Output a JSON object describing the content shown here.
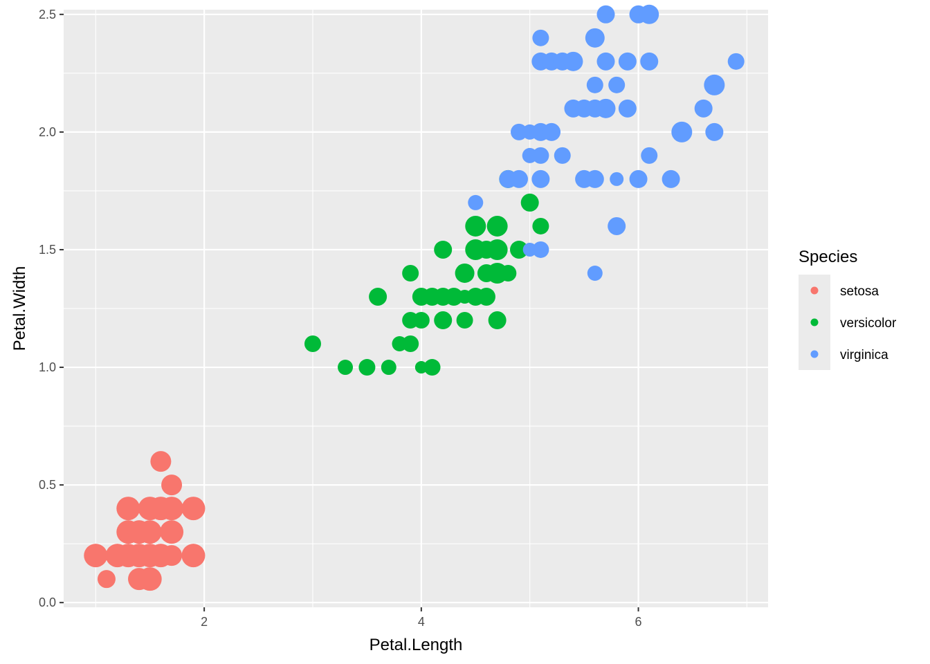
{
  "chart_data": {
    "type": "scatter",
    "xlabel": "Petal.Length",
    "ylabel": "Petal.Width",
    "xlim": [
      0.705,
      7.195
    ],
    "ylim": [
      -0.02,
      2.52
    ],
    "x_ticks": [
      2,
      4,
      6
    ],
    "y_ticks": [
      0.0,
      0.5,
      1.0,
      1.5,
      2.0,
      2.5
    ],
    "x_tick_labels": [
      "2",
      "4",
      "6"
    ],
    "y_tick_labels": [
      "0.0",
      "0.5",
      "1.0",
      "1.5",
      "2.0",
      "2.5"
    ],
    "grid": true,
    "legend": {
      "title": "Species",
      "position": "right",
      "entries": [
        "setosa",
        "versicolor",
        "virginica"
      ]
    },
    "colors": {
      "setosa": "#F8766D",
      "versicolor": "#00BA38",
      "virginica": "#619CFF",
      "panel_background": "#EBEBEB",
      "grid": "#FFFFFF"
    },
    "size_variable": "unlabeled",
    "series": [
      {
        "name": "setosa",
        "points": [
          [
            1.0,
            0.2,
            1
          ],
          [
            1.1,
            0.1,
            0.6
          ],
          [
            1.2,
            0.2,
            1
          ],
          [
            1.3,
            0.2,
            1
          ],
          [
            1.3,
            0.3,
            1
          ],
          [
            1.3,
            0.4,
            1
          ],
          [
            1.4,
            0.1,
            0.9
          ],
          [
            1.4,
            0.2,
            1
          ],
          [
            1.4,
            0.3,
            1
          ],
          [
            1.5,
            0.1,
            1
          ],
          [
            1.5,
            0.2,
            1
          ],
          [
            1.5,
            0.3,
            1
          ],
          [
            1.5,
            0.4,
            1
          ],
          [
            1.6,
            0.2,
            1
          ],
          [
            1.6,
            0.4,
            1
          ],
          [
            1.6,
            0.6,
            0.8
          ],
          [
            1.7,
            0.2,
            0.8
          ],
          [
            1.7,
            0.3,
            1
          ],
          [
            1.7,
            0.4,
            1
          ],
          [
            1.7,
            0.5,
            0.8
          ],
          [
            1.9,
            0.2,
            1
          ],
          [
            1.9,
            0.4,
            1
          ]
        ]
      },
      {
        "name": "versicolor",
        "points": [
          [
            3.0,
            1.1,
            0.5
          ],
          [
            3.3,
            1.0,
            0.4
          ],
          [
            3.5,
            1.0,
            0.5
          ],
          [
            3.6,
            1.3,
            0.6
          ],
          [
            3.7,
            1.0,
            0.4
          ],
          [
            3.8,
            1.1,
            0.4
          ],
          [
            3.9,
            1.1,
            0.5
          ],
          [
            3.9,
            1.2,
            0.5
          ],
          [
            3.9,
            1.4,
            0.5
          ],
          [
            4.0,
            1.0,
            0.2
          ],
          [
            4.0,
            1.2,
            0.5
          ],
          [
            4.0,
            1.3,
            0.6
          ],
          [
            4.1,
            1.0,
            0.5
          ],
          [
            4.1,
            1.3,
            0.6
          ],
          [
            4.2,
            1.2,
            0.6
          ],
          [
            4.2,
            1.3,
            0.6
          ],
          [
            4.2,
            1.5,
            0.6
          ],
          [
            4.3,
            1.3,
            0.6
          ],
          [
            4.4,
            1.2,
            0.5
          ],
          [
            4.4,
            1.3,
            0.3
          ],
          [
            4.4,
            1.4,
            0.7
          ],
          [
            4.5,
            1.3,
            0.6
          ],
          [
            4.5,
            1.5,
            0.8
          ],
          [
            4.5,
            1.6,
            0.8
          ],
          [
            4.6,
            1.3,
            0.6
          ],
          [
            4.6,
            1.4,
            0.6
          ],
          [
            4.6,
            1.5,
            0.6
          ],
          [
            4.7,
            1.2,
            0.6
          ],
          [
            4.7,
            1.4,
            0.8
          ],
          [
            4.7,
            1.5,
            0.8
          ],
          [
            4.7,
            1.6,
            0.8
          ],
          [
            4.8,
            1.4,
            0.5
          ],
          [
            4.8,
            1.8,
            0.6
          ],
          [
            4.9,
            1.5,
            0.6
          ],
          [
            5.0,
            1.7,
            0.6
          ],
          [
            5.1,
            1.6,
            0.5
          ]
        ]
      },
      {
        "name": "virginica",
        "points": [
          [
            4.5,
            1.7,
            0.4
          ],
          [
            4.8,
            1.8,
            0.6
          ],
          [
            4.9,
            1.8,
            0.6
          ],
          [
            4.9,
            2.0,
            0.5
          ],
          [
            5.0,
            1.5,
            0.3
          ],
          [
            5.0,
            1.9,
            0.4
          ],
          [
            5.0,
            2.0,
            0.4
          ],
          [
            5.1,
            1.5,
            0.5
          ],
          [
            5.1,
            1.8,
            0.6
          ],
          [
            5.1,
            1.9,
            0.5
          ],
          [
            5.1,
            2.0,
            0.6
          ],
          [
            5.1,
            2.3,
            0.6
          ],
          [
            5.1,
            2.4,
            0.5
          ],
          [
            5.2,
            2.0,
            0.6
          ],
          [
            5.2,
            2.3,
            0.6
          ],
          [
            5.3,
            1.9,
            0.5
          ],
          [
            5.3,
            2.3,
            0.6
          ],
          [
            5.4,
            2.1,
            0.6
          ],
          [
            5.4,
            2.3,
            0.7
          ],
          [
            5.5,
            1.8,
            0.6
          ],
          [
            5.5,
            2.1,
            0.6
          ],
          [
            5.6,
            1.4,
            0.4
          ],
          [
            5.6,
            1.8,
            0.6
          ],
          [
            5.6,
            2.1,
            0.6
          ],
          [
            5.6,
            2.2,
            0.5
          ],
          [
            5.6,
            2.4,
            0.7
          ],
          [
            5.7,
            2.1,
            0.7
          ],
          [
            5.7,
            2.3,
            0.6
          ],
          [
            5.7,
            2.5,
            0.6
          ],
          [
            5.8,
            1.6,
            0.6
          ],
          [
            5.8,
            1.8,
            0.3
          ],
          [
            5.8,
            2.2,
            0.5
          ],
          [
            5.9,
            2.1,
            0.6
          ],
          [
            5.9,
            2.3,
            0.6
          ],
          [
            6.0,
            1.8,
            0.6
          ],
          [
            6.0,
            2.5,
            0.6
          ],
          [
            6.1,
            1.9,
            0.5
          ],
          [
            6.1,
            2.3,
            0.6
          ],
          [
            6.1,
            2.5,
            0.7
          ],
          [
            6.3,
            1.8,
            0.6
          ],
          [
            6.4,
            2.0,
            0.8
          ],
          [
            6.6,
            2.1,
            0.6
          ],
          [
            6.7,
            2.0,
            0.6
          ],
          [
            6.7,
            2.2,
            0.8
          ],
          [
            6.9,
            2.3,
            0.5
          ]
        ]
      }
    ]
  }
}
